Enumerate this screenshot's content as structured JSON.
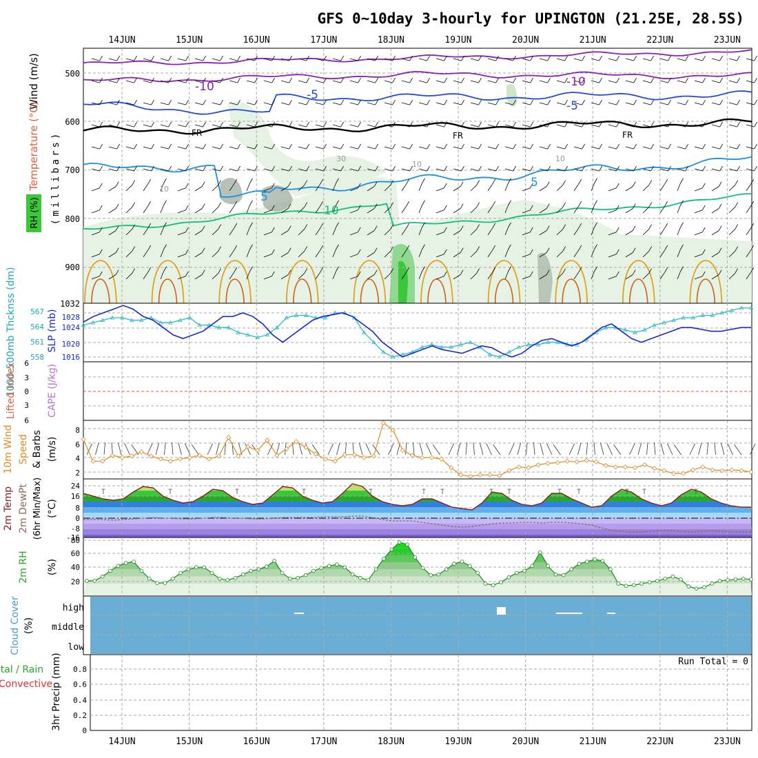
{
  "title": "GFS 0~10day 3-hourly for UPINGTON (21.25E, 28.5S)",
  "dates": [
    "14JUN",
    "15JUN",
    "16JUN",
    "17JUN",
    "18JUN",
    "19JUN",
    "20JUN",
    "21JUN",
    "22JUN",
    "23JUN"
  ],
  "colors": {
    "temp_minus10": "#8c1fb4",
    "temp_minus5": "#1f4ad8",
    "temp_freezing": "#000000",
    "temp_5": "#1a8fe0",
    "temp_10": "#0fbf7a",
    "temp_15": "#e0a020",
    "temp_20": "#d06010",
    "rh_fill": "#e6f2e4",
    "rh_dark": "#9aa69a",
    "thickness": "#2fb8c4",
    "slp": "#1428c8",
    "lifted_index_zero": "#e05050",
    "wind10m": "#e08a20",
    "temp2m": "#8b1a1a",
    "dewpt": "#8a6a5a",
    "rh2m": "#2aa62a",
    "cloud": "#6aaed6",
    "grid": "#aaaaaa"
  },
  "panels": {
    "upper": {
      "y_label": "(millibars)",
      "legend": {
        "wind": "Wind (m/s)",
        "temp": "Temperature (°C)",
        "rh": "RH (%)"
      },
      "ticks": [
        "500",
        "600",
        "700",
        "800",
        "900",
        "1032"
      ],
      "contour_labels": [
        "-10",
        "-10",
        "-5",
        "-5",
        "FR",
        "FR",
        "FR",
        "5",
        "5",
        "10",
        "30",
        "10",
        "10",
        "10"
      ]
    },
    "thickness": {
      "label_thk": "1000-500mb Thcknss (dm)",
      "label_slp": "SLP (mb)",
      "left_ticks": [
        "567",
        "564",
        "561",
        "558"
      ],
      "right_ticks": [
        "1028",
        "1024",
        "1020",
        "1016"
      ]
    },
    "cape": {
      "label_li": "Lifted Index",
      "label_cape": "CAPE (J/kg)",
      "ticks": [
        "6",
        "3",
        "0",
        "3",
        "6"
      ]
    },
    "wind10m": {
      "label_a": "10m Wind",
      "label_b": "Speed",
      "label_c": "& Barbs",
      "unit": "(m/s)",
      "ticks": [
        "8",
        "6",
        "4",
        "2"
      ]
    },
    "temp2m": {
      "label_a": "2m Temp",
      "label_b": "2m DewPt",
      "label_c": "(6hr Min/Max)",
      "unit": "(°C)",
      "ticks": [
        "24",
        "16",
        "8",
        "0",
        "-8",
        "-16"
      ]
    },
    "rh2m": {
      "label": "2m RH",
      "unit": "(%)",
      "ticks": [
        "80",
        "60",
        "40",
        "20"
      ]
    },
    "cloud": {
      "label": "Cloud Cover",
      "unit": "(%)",
      "levels": [
        "high",
        "middle",
        "low"
      ]
    },
    "precip": {
      "label_total": "Total / Rain",
      "label_conv": "Convective",
      "label_axis": "3hr Precip (mm)",
      "run_total": "Run Total = 0",
      "ticks": [
        "0.8",
        "0.6",
        "0.4",
        "0.2",
        "0"
      ]
    }
  },
  "chart_data": {
    "type": "line",
    "x_unit": "3-hourly steps (step 0 = 13JUN 12Z)",
    "days": [
      "14JUN",
      "15JUN",
      "16JUN",
      "17JUN",
      "18JUN",
      "19JUN",
      "20JUN",
      "21JUN",
      "22JUN",
      "23JUN"
    ],
    "series": [
      {
        "name": "1000-500mb Thcknss (dm)",
        "y": [
          564.5,
          565,
          565.5,
          566,
          566,
          565.5,
          565.5,
          566,
          565,
          565,
          565.5,
          566,
          564.5,
          564.5,
          564,
          564,
          563,
          562.5,
          562,
          562.5,
          564,
          566,
          566.5,
          566.5,
          566,
          566,
          567,
          567,
          566,
          563,
          561,
          559,
          558,
          558.5,
          559,
          560,
          560.5,
          560,
          560,
          560.5,
          561,
          560,
          558.5,
          558,
          559,
          560,
          560.5,
          560.5,
          561,
          561,
          560.5,
          560.5,
          561.5,
          563,
          564,
          564,
          563.5,
          563,
          563.5,
          564.5,
          565,
          565.5,
          566,
          566,
          566.5,
          566.5,
          567,
          567.5,
          568,
          568
        ]
      },
      {
        "name": "SLP (mb)",
        "y": [
          1025.5,
          1027,
          1028,
          1029,
          1030,
          1029,
          1027,
          1026,
          1024,
          1022,
          1021,
          1022,
          1023,
          1025,
          1027,
          1027,
          1028,
          1027,
          1025,
          1022,
          1020,
          1022,
          1024,
          1026,
          1027,
          1027.5,
          1028,
          1027,
          1025,
          1023,
          1020,
          1018,
          1016,
          1017,
          1018,
          1019,
          1018,
          1017.5,
          1017,
          1018,
          1019,
          1018.5,
          1017,
          1016,
          1017,
          1019,
          1020.5,
          1021,
          1020,
          1019,
          1020,
          1022,
          1024,
          1025,
          1023,
          1021,
          1020,
          1021,
          1022,
          1023,
          1024,
          1024,
          1023.5,
          1023,
          1023,
          1023.5,
          1024,
          1024
        ]
      },
      {
        "name": "10m Wind Speed (m/s)",
        "y": [
          6.5,
          3.5,
          3.5,
          4.3,
          4,
          4.2,
          4.8,
          4.2,
          3.8,
          3.5,
          3.8,
          4,
          4.3,
          3.8,
          4.2,
          6.8,
          4.2,
          5.5,
          5,
          6.4,
          4.3,
          5.2,
          6.2,
          5.4,
          4.5,
          3.8,
          3.5,
          4.4,
          4.4,
          4,
          4.2,
          8.8,
          7.8,
          5,
          4.3,
          4,
          4,
          3.8,
          2.6,
          1.6,
          1.4,
          1.6,
          1.6,
          1.5,
          2.2,
          2.7,
          2.6,
          3,
          3.2,
          3.3,
          3.5,
          3.4,
          3.6,
          3.4,
          2.9,
          2.7,
          2.7,
          2.6,
          3,
          2.5,
          2.2,
          1.8,
          1.8,
          2.3,
          2.7,
          2.3,
          2.2,
          2.3,
          2.2,
          2
        ]
      },
      {
        "name": "2m Temp (°C)",
        "y": [
          18,
          16,
          14,
          13,
          14,
          19,
          23,
          22,
          16,
          13,
          11,
          12,
          16,
          21,
          20,
          15,
          12,
          10,
          11,
          17,
          23,
          22,
          16,
          13,
          11,
          12,
          18,
          25,
          23,
          16,
          12,
          10,
          9,
          10,
          14,
          14,
          11,
          8,
          7,
          6,
          11,
          19,
          18,
          13,
          10,
          9,
          11,
          18,
          18,
          14,
          11,
          8,
          9,
          16,
          21,
          19,
          14,
          11,
          9,
          11,
          17,
          21,
          19,
          14,
          11,
          9,
          8,
          8
        ]
      },
      {
        "name": "2m DewPt (°C)",
        "y": [
          -1,
          -1,
          -1,
          -1.5,
          -1,
          -0.5,
          0,
          0.5,
          0,
          0,
          -0.5,
          -0.5,
          0,
          0.5,
          0.5,
          0,
          0,
          -0.5,
          -0.5,
          0,
          0.5,
          0.5,
          0.5,
          0.5,
          1,
          1,
          1,
          1.5,
          1.5,
          0.5,
          -1,
          -2,
          -2,
          -2,
          -3,
          -4,
          -5,
          -6,
          -6.5,
          -6,
          -5,
          -4,
          -3.5,
          -3.5,
          -3,
          -3,
          -3.5,
          -3,
          -3,
          -3.5,
          -4,
          -5,
          -7,
          -9,
          -9.5,
          -10,
          -10,
          -9.5,
          -9,
          -9,
          -9.5,
          -10,
          -9.5,
          -9,
          -9.5,
          -10,
          -10,
          -10
        ]
      },
      {
        "name": "2m RH (%)",
        "y": [
          24,
          24,
          30,
          38,
          45,
          49,
          51,
          38,
          27,
          21,
          21,
          27,
          35,
          40,
          43,
          43,
          35,
          27,
          25,
          28,
          33,
          38,
          40,
          44,
          52,
          35,
          27,
          28,
          32,
          38,
          42,
          45,
          47,
          43,
          33,
          28,
          25,
          40,
          55,
          68,
          78,
          75,
          57,
          42,
          32,
          33,
          40,
          48,
          51,
          45,
          35,
          20,
          18,
          22,
          29,
          35,
          38,
          45,
          64,
          45,
          33,
          32,
          40,
          48,
          51,
          54,
          52,
          40,
          20,
          17,
          18,
          20,
          22,
          24,
          27,
          30,
          26,
          16,
          13,
          15,
          20,
          24,
          25,
          26,
          27,
          26
        ]
      }
    ],
    "cape_lifted_index": {
      "li_zero_line": 0,
      "values": "none"
    },
    "precip": {
      "total_mm": 0
    },
    "cloud": {
      "low": 100,
      "middle": 100,
      "high": 100
    }
  }
}
